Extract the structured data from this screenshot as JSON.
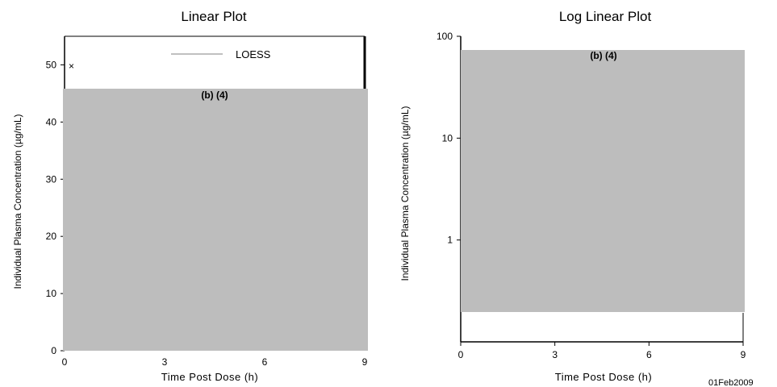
{
  "footer_date": "01Feb2009",
  "colors": {
    "redaction": "#bdbdbd",
    "axis": "#000000"
  },
  "chart_data": [
    {
      "type": "line",
      "title": "Linear Plot",
      "xlabel": "Time Post Dose (h)",
      "ylabel": "Individual Plasma Concentration (µg/mL)",
      "xlim": [
        0,
        9
      ],
      "ylim": [
        0,
        55
      ],
      "xticks": [
        0,
        3,
        6,
        9
      ],
      "yticks": [
        0,
        10,
        20,
        30,
        40,
        50
      ],
      "legend": {
        "label": "LOESS",
        "placement": "top-right"
      },
      "visible_marker_symbol": "×",
      "redaction_label": "(b) (4)"
    },
    {
      "type": "line",
      "title": "Log Linear Plot",
      "xlabel": "Time Post Dose (h)",
      "ylabel": "Individual Plasma Concentration (µg/mL)",
      "xlim": [
        0,
        9
      ],
      "ylim": [
        0.1,
        100
      ],
      "yscale": "log",
      "xticks": [
        0,
        3,
        6,
        9
      ],
      "yticks": [
        1,
        10,
        100
      ],
      "redaction_label": "(b) (4)"
    }
  ]
}
